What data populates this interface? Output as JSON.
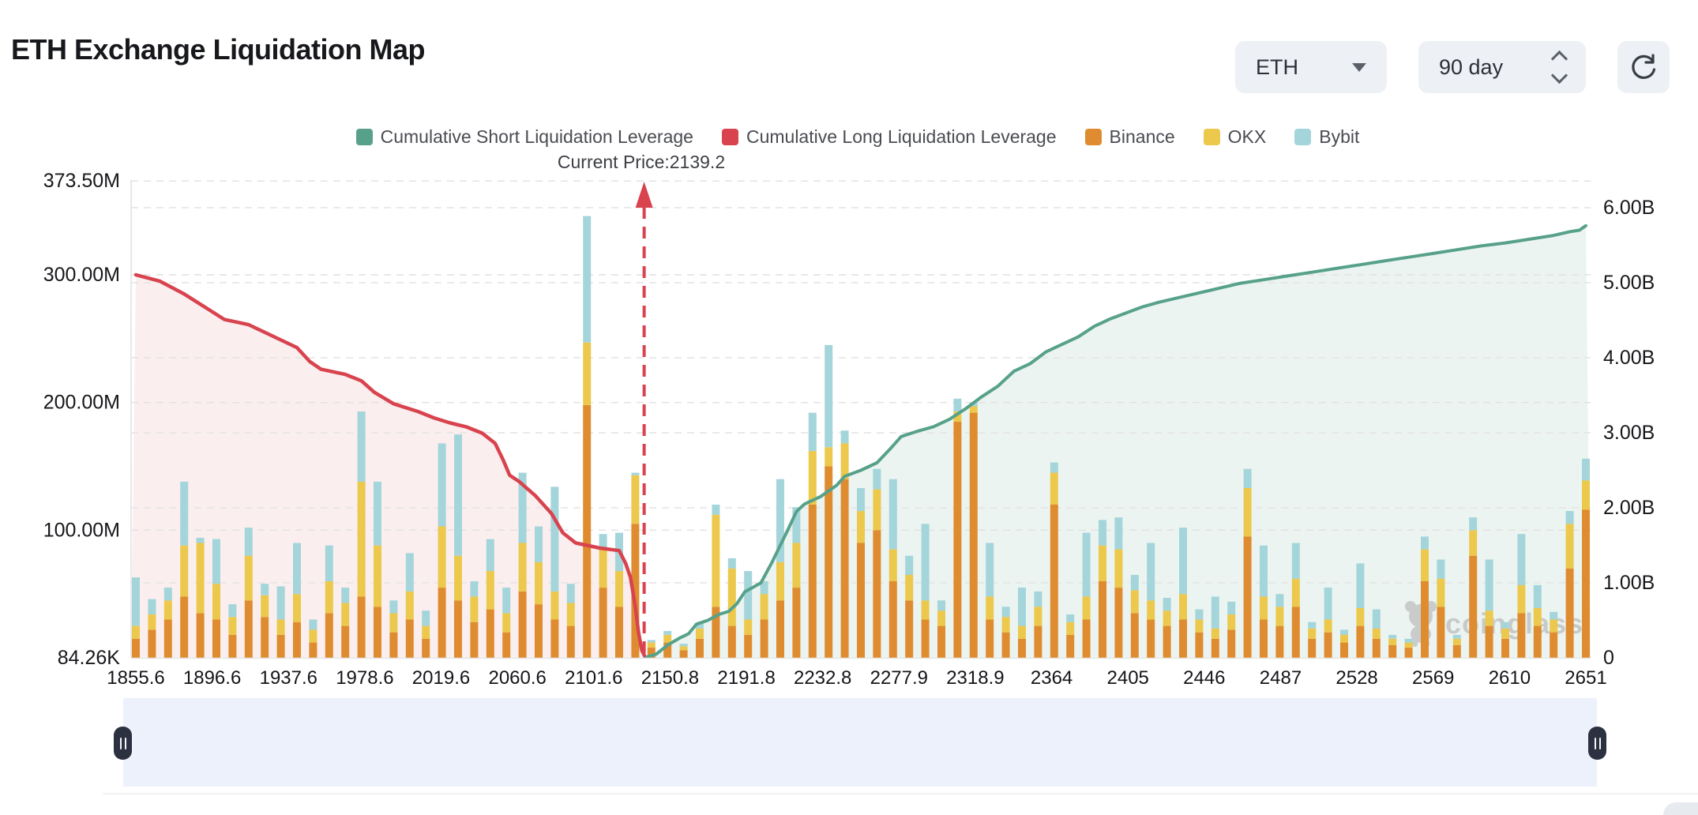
{
  "header": {
    "title": "ETH Exchange Liquidation Map"
  },
  "controls": {
    "symbol_select": {
      "value": "ETH"
    },
    "period_select": {
      "value": "90 day"
    }
  },
  "legend": {
    "items": [
      {
        "label": "Cumulative Short Liquidation Leverage",
        "color": "#57a18b"
      },
      {
        "label": "Cumulative Long Liquidation Leverage",
        "color": "#d8434e"
      },
      {
        "label": "Binance",
        "color": "#de8c2f"
      },
      {
        "label": "OKX",
        "color": "#ecc84c"
      },
      {
        "label": "Bybit",
        "color": "#a4d5da"
      }
    ]
  },
  "annotation": {
    "current_price_label": "Current Price:2139.2"
  },
  "watermark": {
    "text": "coinglass"
  },
  "navigator": {
    "left_handle_icon": "pause-icon",
    "right_handle_icon": "pause-icon"
  },
  "chart_data": {
    "type": "bar",
    "subtype": "stacked-bars-with-cumulative-lines",
    "title": "ETH Exchange Liquidation Map",
    "current_price": 2139.2,
    "x_ticks": [
      "1855.6",
      "1896.6",
      "1937.6",
      "1978.6",
      "2019.6",
      "2060.6",
      "2101.6",
      "2150.8",
      "2191.8",
      "2232.8",
      "2277.9",
      "2318.9",
      "2364",
      "2405",
      "2446",
      "2487",
      "2528",
      "2569",
      "2610",
      "2651"
    ],
    "left_axis": {
      "unit": "M (liquidation leverage, millions USD)",
      "ticks": [
        {
          "label": "373.50M",
          "v": 373.5
        },
        {
          "label": "300.00M",
          "v": 300
        },
        {
          "label": "200.00M",
          "v": 200
        },
        {
          "label": "100.00M",
          "v": 100
        },
        {
          "label": "84.26K",
          "v": 0
        }
      ],
      "max": 373.5
    },
    "right_axis": {
      "unit": "B (cumulative leverage, billions USD)",
      "ticks": [
        {
          "label": "6.00B",
          "v": 6
        },
        {
          "label": "5.00B",
          "v": 5
        },
        {
          "label": "4.00B",
          "v": 4
        },
        {
          "label": "3.00B",
          "v": 3
        },
        {
          "label": "2.00B",
          "v": 2
        },
        {
          "label": "1.00B",
          "v": 1
        },
        {
          "label": "0",
          "v": 0
        }
      ],
      "max": 6.35
    },
    "grid": true,
    "legend_position": "top-center",
    "bars": {
      "slots": 91,
      "series": [
        {
          "name": "Binance",
          "color": "#de8c2f",
          "unit": "M",
          "values": [
            15,
            22,
            30,
            48,
            35,
            30,
            18,
            45,
            32,
            18,
            28,
            12,
            35,
            25,
            48,
            40,
            20,
            30,
            15,
            55,
            45,
            28,
            38,
            20,
            52,
            42,
            30,
            25,
            198,
            55,
            40,
            105,
            8,
            12,
            6,
            15,
            40,
            25,
            18,
            30,
            45,
            55,
            120,
            150,
            140,
            90,
            100,
            60,
            45,
            30,
            25,
            185,
            192,
            30,
            20,
            15,
            25,
            120,
            18,
            30,
            60,
            55,
            35,
            30,
            25,
            30,
            20,
            15,
            22,
            95,
            30,
            25,
            40,
            15,
            20,
            12,
            25,
            15,
            10,
            8,
            60,
            40,
            10,
            80,
            25,
            15,
            35,
            25,
            20,
            70,
            116
          ]
        },
        {
          "name": "OKX",
          "color": "#ecc84c",
          "unit": "M",
          "values": [
            10,
            12,
            15,
            40,
            55,
            28,
            14,
            35,
            17,
            12,
            22,
            10,
            25,
            18,
            90,
            48,
            15,
            22,
            10,
            48,
            35,
            20,
            30,
            15,
            38,
            33,
            22,
            18,
            49,
            30,
            28,
            38,
            4,
            6,
            3,
            8,
            72,
            45,
            12,
            20,
            30,
            35,
            42,
            15,
            28,
            25,
            32,
            25,
            20,
            15,
            12,
            8,
            5,
            18,
            12,
            10,
            15,
            25,
            10,
            18,
            28,
            30,
            18,
            15,
            12,
            20,
            10,
            8,
            12,
            38,
            18,
            15,
            22,
            8,
            10,
            6,
            14,
            8,
            5,
            4,
            25,
            22,
            5,
            20,
            12,
            8,
            22,
            14,
            10,
            35,
            23
          ]
        },
        {
          "name": "Bybit",
          "color": "#a4d5da",
          "unit": "M",
          "values": [
            38,
            12,
            10,
            50,
            4,
            35,
            10,
            22,
            9,
            26,
            40,
            8,
            28,
            12,
            55,
            50,
            10,
            30,
            12,
            65,
            95,
            12,
            25,
            20,
            55,
            28,
            82,
            15,
            99,
            12,
            30,
            2,
            2,
            3,
            2,
            4,
            8,
            8,
            38,
            10,
            65,
            28,
            30,
            80,
            10,
            18,
            16,
            55,
            15,
            60,
            8,
            10,
            3,
            42,
            8,
            30,
            12,
            8,
            6,
            50,
            20,
            25,
            12,
            45,
            10,
            52,
            8,
            25,
            10,
            15,
            40,
            10,
            28,
            5,
            25,
            4,
            35,
            15,
            3,
            3,
            10,
            15,
            3,
            10,
            40,
            5,
            40,
            18,
            6,
            10,
            17
          ]
        }
      ]
    },
    "lines": [
      {
        "name": "Cumulative Long Liquidation Leverage",
        "color": "#d8434e",
        "axis": "left",
        "unit": "M",
        "points": [
          [
            0,
            300
          ],
          [
            1.5,
            295
          ],
          [
            3,
            285
          ],
          [
            4.5,
            273
          ],
          [
            5.5,
            265
          ],
          [
            7,
            261
          ],
          [
            8.5,
            252
          ],
          [
            10,
            243
          ],
          [
            10.8,
            232
          ],
          [
            11.5,
            226
          ],
          [
            13,
            222
          ],
          [
            14,
            217
          ],
          [
            14.8,
            208
          ],
          [
            16,
            199
          ],
          [
            17.5,
            193
          ],
          [
            18.5,
            188
          ],
          [
            19.5,
            184
          ],
          [
            20.5,
            181
          ],
          [
            21.5,
            176
          ],
          [
            22.3,
            168
          ],
          [
            22.8,
            155
          ],
          [
            23.2,
            143
          ],
          [
            23.8,
            138
          ],
          [
            24.8,
            127
          ],
          [
            25.8,
            113
          ],
          [
            26.5,
            98
          ],
          [
            27.3,
            90
          ],
          [
            28.8,
            86
          ],
          [
            30.0,
            84
          ],
          [
            30.4,
            74
          ],
          [
            30.7,
            63
          ],
          [
            31.0,
            40
          ],
          [
            31.2,
            20
          ],
          [
            31.4,
            6
          ],
          [
            31.6,
            1
          ]
        ]
      },
      {
        "name": "Cumulative Short Liquidation Leverage",
        "color": "#57a18b",
        "axis": "right",
        "unit": "B",
        "points": [
          [
            31.7,
            0.01
          ],
          [
            32.3,
            0.05
          ],
          [
            33,
            0.17
          ],
          [
            33.8,
            0.27
          ],
          [
            34.3,
            0.32
          ],
          [
            34.8,
            0.45
          ],
          [
            35.5,
            0.5
          ],
          [
            36.2,
            0.58
          ],
          [
            36.8,
            0.62
          ],
          [
            37.3,
            0.72
          ],
          [
            37.8,
            0.88
          ],
          [
            38.3,
            0.94
          ],
          [
            38.8,
            1.0
          ],
          [
            39.5,
            1.28
          ],
          [
            40,
            1.5
          ],
          [
            40.5,
            1.72
          ],
          [
            41,
            1.95
          ],
          [
            41.5,
            2.05
          ],
          [
            42.5,
            2.15
          ],
          [
            43.5,
            2.3
          ],
          [
            44,
            2.42
          ],
          [
            45,
            2.5
          ],
          [
            46,
            2.6
          ],
          [
            46.8,
            2.78
          ],
          [
            47.5,
            2.95
          ],
          [
            48.5,
            3.02
          ],
          [
            49.5,
            3.08
          ],
          [
            50.5,
            3.18
          ],
          [
            51.5,
            3.32
          ],
          [
            52.5,
            3.48
          ],
          [
            53.5,
            3.62
          ],
          [
            54.5,
            3.82
          ],
          [
            55.5,
            3.92
          ],
          [
            56.5,
            4.08
          ],
          [
            57.5,
            4.18
          ],
          [
            58.5,
            4.28
          ],
          [
            59.5,
            4.42
          ],
          [
            60.5,
            4.52
          ],
          [
            61.5,
            4.6
          ],
          [
            62.5,
            4.68
          ],
          [
            63.5,
            4.74
          ],
          [
            64.5,
            4.79
          ],
          [
            65.5,
            4.84
          ],
          [
            66.5,
            4.89
          ],
          [
            67.5,
            4.94
          ],
          [
            68.5,
            4.99
          ],
          [
            70,
            5.04
          ],
          [
            71.5,
            5.09
          ],
          [
            73,
            5.14
          ],
          [
            74.5,
            5.19
          ],
          [
            76,
            5.24
          ],
          [
            77.5,
            5.29
          ],
          [
            79,
            5.34
          ],
          [
            80.5,
            5.39
          ],
          [
            82,
            5.44
          ],
          [
            83.5,
            5.49
          ],
          [
            85,
            5.53
          ],
          [
            86.5,
            5.58
          ],
          [
            88,
            5.63
          ],
          [
            89,
            5.68
          ],
          [
            89.6,
            5.7
          ],
          [
            90,
            5.76
          ]
        ]
      }
    ],
    "price_marker": {
      "slot": 31.55,
      "label": "Current Price:2139.2",
      "color": "#d8434e",
      "style": "dashed-vertical-arrow-up"
    }
  }
}
